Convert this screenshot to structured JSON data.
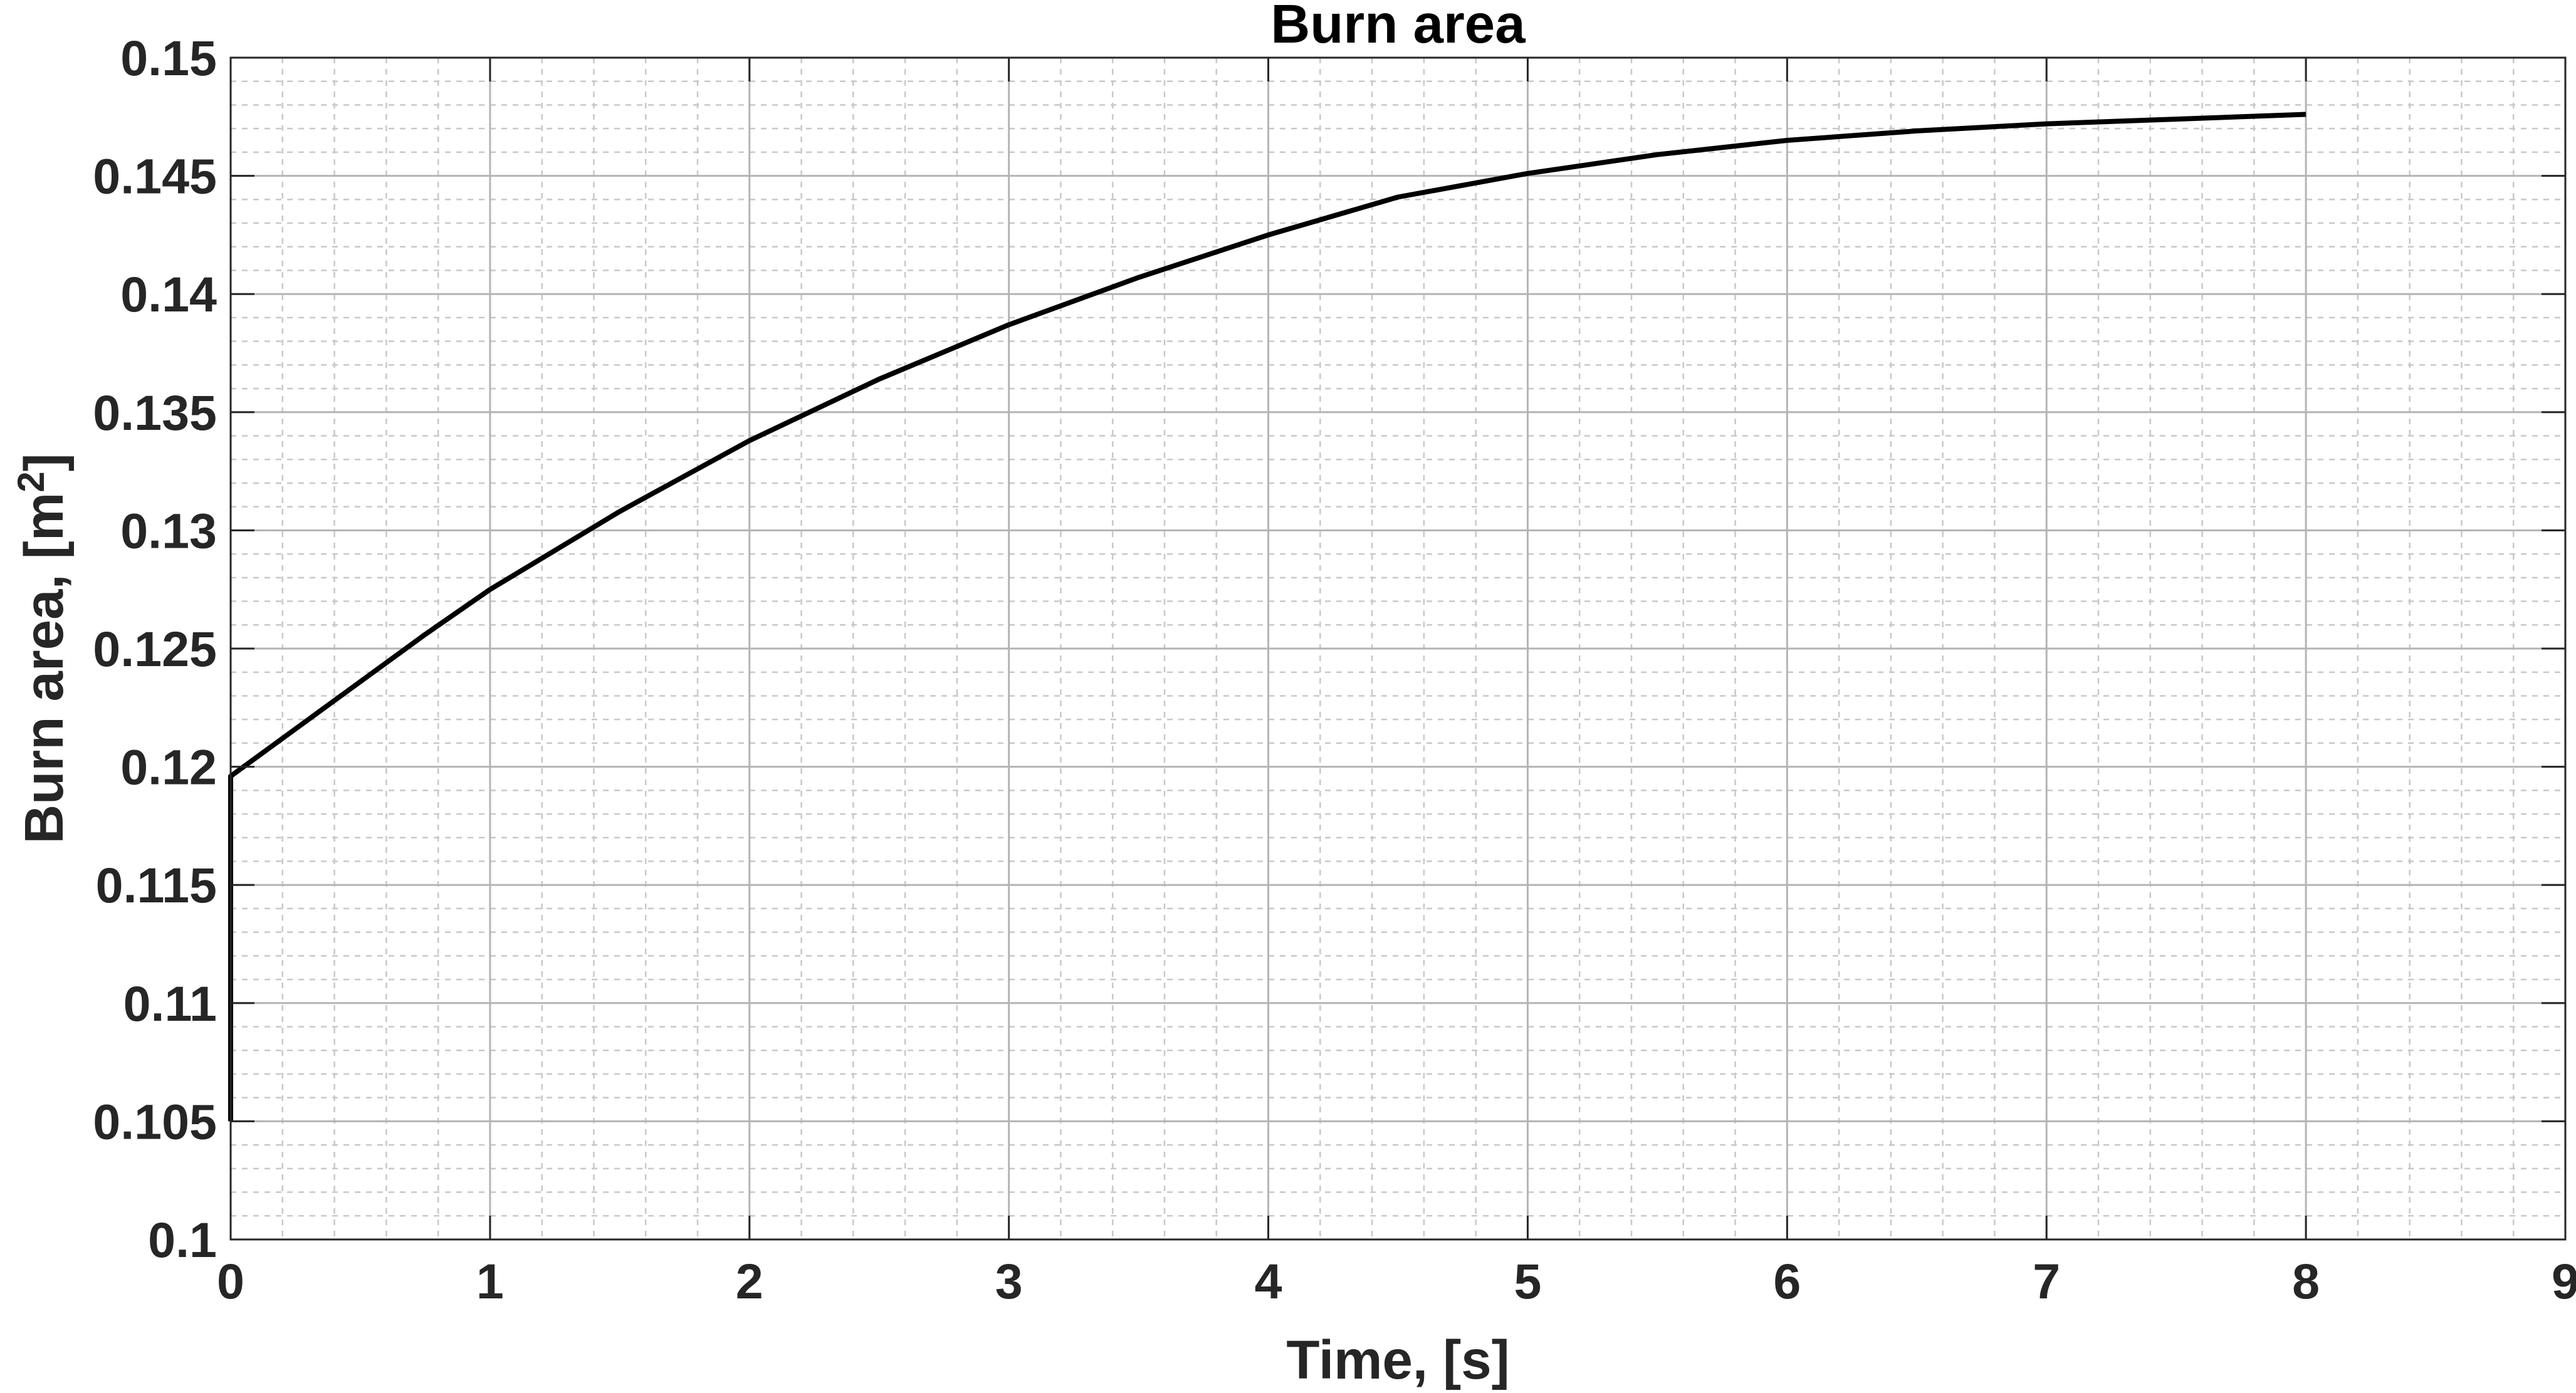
{
  "chart_data": {
    "type": "line",
    "title": "Burn area",
    "xlabel": "Time, [s]",
    "ylabel_main": "Burn area, [m",
    "ylabel_sup": "2",
    "ylabel_close": "]",
    "xlim": [
      0,
      9
    ],
    "ylim": [
      0.1,
      0.15
    ],
    "xticks": [
      0,
      1,
      2,
      3,
      4,
      5,
      6,
      7,
      8,
      9
    ],
    "yticks": [
      0.1,
      0.105,
      0.11,
      0.115,
      0.12,
      0.125,
      0.13,
      0.135,
      0.14,
      0.145,
      0.15
    ],
    "xtick_labels": [
      "0",
      "1",
      "2",
      "3",
      "4",
      "5",
      "6",
      "7",
      "8",
      "9"
    ],
    "ytick_labels": [
      "0.1",
      "0.105",
      "0.11",
      "0.115",
      "0.12",
      "0.125",
      "0.13",
      "0.135",
      "0.14",
      "0.145",
      "0.15"
    ],
    "grid": true,
    "minor_grid": true,
    "line_color": "#000000",
    "series": [
      {
        "x": [
          0,
          0,
          0.1,
          0.25,
          0.5,
          0.75,
          1.0,
          1.5,
          2.0,
          2.5,
          3.0,
          3.5,
          4.0,
          4.5,
          5.0,
          5.5,
          6.0,
          6.5,
          7.0,
          7.5,
          8.0
        ],
        "y": [
          0.105,
          0.1196,
          0.1204,
          0.1216,
          0.1236,
          0.1256,
          0.1275,
          0.1308,
          0.1338,
          0.1364,
          0.1387,
          0.1407,
          0.1425,
          0.1441,
          0.1451,
          0.1459,
          0.1465,
          0.1469,
          0.1472,
          0.1474,
          0.1476
        ]
      }
    ]
  }
}
